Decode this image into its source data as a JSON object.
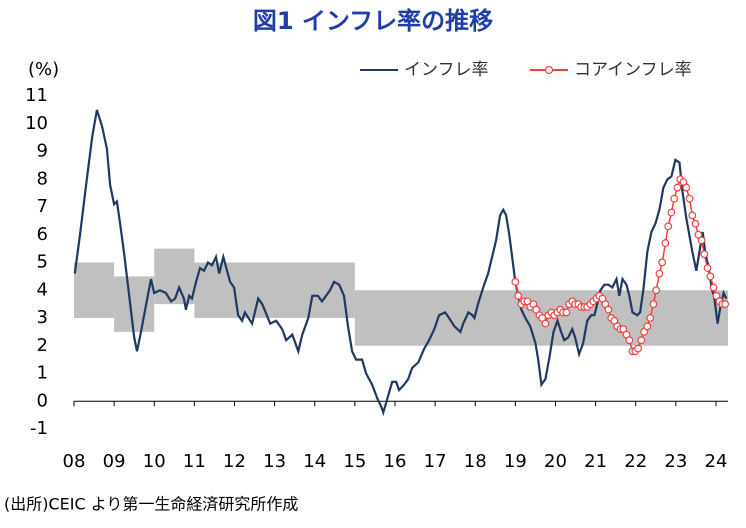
{
  "chart_data": {
    "type": "line",
    "title": "図1 インフレ率の推移",
    "y_unit": "(%)",
    "source": "(出所)CEIC より第一生命経済研究所作成",
    "xlim": [
      2008,
      2024.3
    ],
    "ylim": [
      -1,
      11
    ],
    "yticks": [
      -1,
      0,
      1,
      2,
      3,
      4,
      5,
      6,
      7,
      8,
      9,
      10,
      11
    ],
    "xticks": [
      {
        "value": 2008,
        "label": "08"
      },
      {
        "value": 2009,
        "label": "09"
      },
      {
        "value": 2010,
        "label": "10"
      },
      {
        "value": 2011,
        "label": "11"
      },
      {
        "value": 2012,
        "label": "12"
      },
      {
        "value": 2013,
        "label": "13"
      },
      {
        "value": 2014,
        "label": "14"
      },
      {
        "value": 2015,
        "label": "15"
      },
      {
        "value": 2016,
        "label": "16"
      },
      {
        "value": 2017,
        "label": "17"
      },
      {
        "value": 2018,
        "label": "18"
      },
      {
        "value": 2019,
        "label": "19"
      },
      {
        "value": 2020,
        "label": "20"
      },
      {
        "value": 2021,
        "label": "21"
      },
      {
        "value": 2022,
        "label": "22"
      },
      {
        "value": 2023,
        "label": "23"
      },
      {
        "value": 2024,
        "label": "24"
      }
    ],
    "band_color": "#c0c0c0",
    "target_band": [
      {
        "start": 2008,
        "end": 2009,
        "low": 3,
        "high": 5
      },
      {
        "start": 2009,
        "end": 2010,
        "low": 2.5,
        "high": 4.5
      },
      {
        "start": 2010,
        "end": 2011,
        "low": 3.5,
        "high": 5.5
      },
      {
        "start": 2011,
        "end": 2015,
        "low": 3,
        "high": 5
      },
      {
        "start": 2015,
        "end": 2024.3,
        "low": 2,
        "high": 4
      }
    ],
    "series": [
      {
        "name": "インフレ率",
        "color": "#1f3864",
        "marker": false,
        "x": [
          2008.02,
          2008.15,
          2008.32,
          2008.45,
          2008.57,
          2008.7,
          2008.82,
          2008.9,
          2009.0,
          2009.07,
          2009.15,
          2009.25,
          2009.4,
          2009.5,
          2009.57,
          2009.67,
          2009.8,
          2009.92,
          2010.0,
          2010.14,
          2010.29,
          2010.42,
          2010.52,
          2010.62,
          2010.74,
          2010.79,
          2010.87,
          2010.94,
          2011.04,
          2011.14,
          2011.24,
          2011.34,
          2011.44,
          2011.54,
          2011.62,
          2011.72,
          2011.89,
          2011.99,
          2012.09,
          2012.19,
          2012.26,
          2012.44,
          2012.59,
          2012.69,
          2012.89,
          2013.04,
          2013.19,
          2013.29,
          2013.44,
          2013.59,
          2013.69,
          2013.84,
          2013.94,
          2014.08,
          2014.18,
          2014.38,
          2014.48,
          2014.61,
          2014.73,
          2014.83,
          2014.93,
          2015.03,
          2015.18,
          2015.28,
          2015.43,
          2015.56,
          2015.66,
          2015.71,
          2015.81,
          2015.93,
          2016.03,
          2016.1,
          2016.23,
          2016.33,
          2016.43,
          2016.58,
          2016.73,
          2016.85,
          2016.98,
          2017.1,
          2017.25,
          2017.35,
          2017.48,
          2017.63,
          2017.7,
          2017.83,
          2017.93,
          2017.98,
          2018.07,
          2018.22,
          2018.32,
          2018.42,
          2018.52,
          2018.62,
          2018.7,
          2018.77,
          2018.85,
          2018.93,
          2019.0,
          2019.07,
          2019.15,
          2019.25,
          2019.37,
          2019.5,
          2019.57,
          2019.65,
          2019.75,
          2019.85,
          2019.95,
          2020.05,
          2020.14,
          2020.22,
          2020.32,
          2020.42,
          2020.49,
          2020.59,
          2020.69,
          2020.79,
          2020.89,
          2020.97,
          2021.04,
          2021.12,
          2021.22,
          2021.32,
          2021.42,
          2021.52,
          2021.59,
          2021.67,
          2021.77,
          2021.84,
          2021.92,
          2022.04,
          2022.11,
          2022.19,
          2022.29,
          2022.39,
          2022.49,
          2022.59,
          2022.69,
          2022.79,
          2022.89,
          2022.99,
          2023.09,
          2023.16,
          2023.26,
          2023.41,
          2023.51,
          2023.59,
          2023.67,
          2023.74,
          2023.81,
          2023.89,
          2023.96,
          2024.04,
          2024.11,
          2024.19,
          2024.26
        ],
        "values": [
          4.6,
          6.0,
          8.0,
          9.5,
          10.5,
          9.9,
          9.1,
          7.8,
          7.1,
          7.2,
          6.4,
          5.3,
          3.5,
          2.3,
          1.8,
          2.5,
          3.5,
          4.4,
          3.9,
          4.0,
          3.9,
          3.6,
          3.7,
          4.1,
          3.7,
          3.3,
          3.8,
          3.7,
          4.3,
          4.8,
          4.7,
          5.0,
          4.9,
          5.2,
          4.6,
          5.2,
          4.3,
          4.1,
          3.1,
          2.9,
          3.2,
          2.8,
          3.7,
          3.5,
          2.8,
          2.9,
          2.6,
          2.2,
          2.4,
          1.8,
          2.4,
          3.0,
          3.8,
          3.8,
          3.6,
          4.0,
          4.3,
          4.2,
          3.8,
          2.7,
          1.8,
          1.5,
          1.5,
          1.0,
          0.6,
          0.1,
          -0.2,
          -0.4,
          0.1,
          0.7,
          0.7,
          0.4,
          0.6,
          0.8,
          1.2,
          1.4,
          1.9,
          2.2,
          2.6,
          3.1,
          3.2,
          3.0,
          2.7,
          2.5,
          2.8,
          3.2,
          3.1,
          3.0,
          3.5,
          4.2,
          4.6,
          5.2,
          5.8,
          6.7,
          6.9,
          6.7,
          6.0,
          5.1,
          4.3,
          3.8,
          3.3,
          3.0,
          2.7,
          2.1,
          1.5,
          0.6,
          0.8,
          1.6,
          2.5,
          2.9,
          2.5,
          2.2,
          2.3,
          2.6,
          2.3,
          1.7,
          2.1,
          2.9,
          3.1,
          3.1,
          3.5,
          4.0,
          4.2,
          4.2,
          4.1,
          4.4,
          3.8,
          4.4,
          4.2,
          3.8,
          3.2,
          3.1,
          3.2,
          4.0,
          5.4,
          6.1,
          6.4,
          6.9,
          7.7,
          8.0,
          8.1,
          8.7,
          8.6,
          7.6,
          6.6,
          5.4,
          4.7,
          5.4,
          6.1,
          5.3,
          4.9,
          4.1,
          3.7,
          2.8,
          3.4,
          3.9,
          3.7
        ]
      },
      {
        "name": "コアインフレ率",
        "color": "#f04040",
        "marker": true,
        "x": [
          2019.0,
          2019.07,
          2019.15,
          2019.22,
          2019.3,
          2019.37,
          2019.45,
          2019.52,
          2019.6,
          2019.67,
          2019.75,
          2019.82,
          2019.9,
          2019.97,
          2020.05,
          2020.12,
          2020.19,
          2020.27,
          2020.34,
          2020.42,
          2020.49,
          2020.57,
          2020.64,
          2020.72,
          2020.79,
          2020.87,
          2020.94,
          2021.02,
          2021.09,
          2021.17,
          2021.24,
          2021.32,
          2021.39,
          2021.47,
          2021.54,
          2021.62,
          2021.69,
          2021.77,
          2021.84,
          2021.92,
          2021.99,
          2022.06,
          2022.14,
          2022.21,
          2022.29,
          2022.36,
          2022.44,
          2022.51,
          2022.59,
          2022.66,
          2022.74,
          2022.81,
          2022.89,
          2022.96,
          2023.04,
          2023.11,
          2023.19,
          2023.26,
          2023.34,
          2023.41,
          2023.49,
          2023.56,
          2023.64,
          2023.71,
          2023.79,
          2023.86,
          2023.94,
          2024.01,
          2024.09,
          2024.16,
          2024.23
        ],
        "values": [
          4.3,
          3.8,
          3.5,
          3.6,
          3.6,
          3.4,
          3.5,
          3.3,
          3.1,
          3.0,
          2.8,
          3.1,
          3.2,
          3.1,
          3.2,
          3.3,
          3.2,
          3.2,
          3.5,
          3.6,
          3.5,
          3.5,
          3.4,
          3.4,
          3.4,
          3.5,
          3.6,
          3.7,
          3.8,
          3.7,
          3.5,
          3.3,
          3.0,
          2.9,
          2.7,
          2.6,
          2.6,
          2.4,
          2.2,
          1.8,
          1.8,
          1.9,
          2.2,
          2.5,
          2.7,
          3.0,
          3.5,
          4.0,
          4.6,
          5.0,
          5.7,
          6.3,
          6.8,
          7.3,
          7.7,
          8.0,
          7.9,
          7.7,
          7.3,
          6.7,
          6.4,
          6.0,
          5.8,
          5.3,
          4.8,
          4.5,
          4.1,
          3.8,
          3.6,
          3.5,
          3.5
        ]
      }
    ]
  }
}
